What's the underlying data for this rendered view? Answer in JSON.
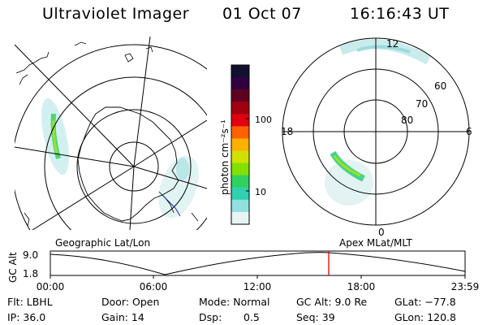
{
  "header": {
    "instrument": "Ultraviolet Imager",
    "date": "01 Oct 07",
    "time": "16:16:43 UT"
  },
  "colorbar": {
    "label": "photon cm⁻²s⁻¹",
    "ticks": [
      "100",
      "10"
    ],
    "colors": [
      "#101030",
      "#300040",
      "#600020",
      "#a00010",
      "#e00010",
      "#ff6000",
      "#ffb000",
      "#d0e000",
      "#80e000",
      "#30d060",
      "#30d0b0",
      "#90e0e0",
      "#e8f4f4"
    ]
  },
  "geo_panel": {
    "label": "Geographic Lat/Lon"
  },
  "apex_panel": {
    "label": "Apex MLat/MLT",
    "mlt_labels": {
      "top": "12",
      "left": "18",
      "right": "6",
      "bottom": "0"
    },
    "lat_labels": [
      "60",
      "70",
      "80"
    ]
  },
  "timeline": {
    "axis_title": "GC Alt",
    "y_ticks": [
      "9.0",
      "1.8"
    ],
    "x_ticks": [
      "00:00",
      "06:00",
      "12:00",
      "18:00",
      "23:59"
    ],
    "marker_color": "#e00000"
  },
  "footer": {
    "filter": "Flt: LBHL",
    "door": "Door: Open",
    "mode": "Mode: Normal",
    "gc_alt": "GC Alt: 9.0 Re",
    "glat": "GLat: −77.8",
    "ip": "IP: 36.0",
    "gain": "Gain: 14",
    "dsp_label": "Dsp:",
    "dsp_value": "0.5",
    "seq": "Seq: 39",
    "glon": "GLon: 120.8"
  }
}
